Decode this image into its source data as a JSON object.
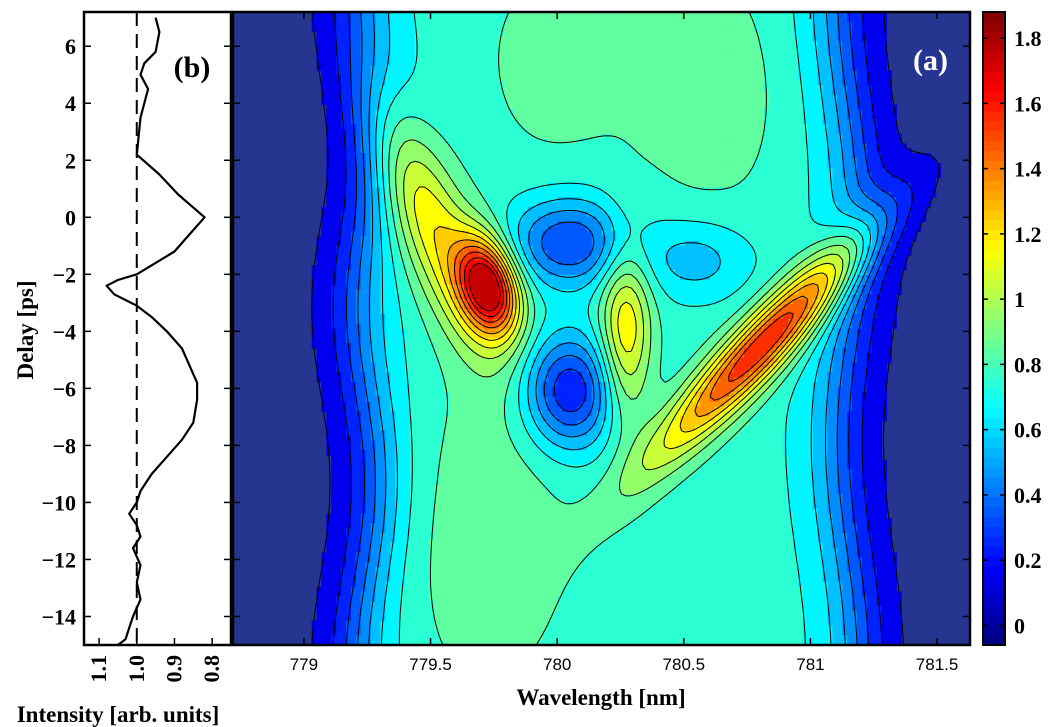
{
  "chart_data": [
    {
      "type": "heatmap",
      "panel_label": "(a)",
      "xlabel": "Wavelength [nm]",
      "ylabel": "Delay [ps]",
      "xlim": [
        778.72,
        781.63
      ],
      "ylim": [
        -15,
        7.2
      ],
      "x_ticks": [
        "779",
        "779.5",
        "780",
        "780.5",
        "781",
        "781.5"
      ],
      "x_tick_values": [
        779,
        779.5,
        780,
        780.5,
        781,
        781.5
      ],
      "y_ticks": [
        "6",
        "4",
        "2",
        "0",
        "−2",
        "−4",
        "−6",
        "−8",
        "−10",
        "−12",
        "−14"
      ],
      "y_tick_values": [
        6,
        4,
        2,
        0,
        -2,
        -4,
        -6,
        -8,
        -10,
        -12,
        -14
      ],
      "colorbar": {
        "ticks": [
          "0",
          "0.2",
          "0.4",
          "0.6",
          "0.8",
          "1",
          "1.2",
          "1.4",
          "1.6",
          "1.8"
        ],
        "tick_values": [
          0,
          0.2,
          0.4,
          0.6,
          0.8,
          1,
          1.2,
          1.4,
          1.6,
          1.8
        ],
        "range": [
          -0.06,
          1.88
        ]
      },
      "contour_levels": [
        0.1,
        0.2,
        0.3,
        0.4,
        0.5,
        0.6,
        0.7,
        0.8,
        0.9,
        1.0,
        1.1,
        1.2,
        1.3,
        1.4,
        1.5,
        1.6,
        1.7
      ],
      "peaks": [
        {
          "x": 779.72,
          "y": -2.4,
          "value": 1.75
        },
        {
          "x": 780.93,
          "y": -3.5,
          "value": 1.5
        },
        {
          "x": 779.43,
          "y": 0.6,
          "value": 1.12
        },
        {
          "x": 780.27,
          "y": -4.0,
          "value": 1.05
        },
        {
          "x": 780.72,
          "y": -5.5,
          "value": 1.3
        }
      ],
      "minima": [
        {
          "x": 780.05,
          "y": -0.8,
          "value": 0.3
        },
        {
          "x": 780.05,
          "y": -6.1,
          "value": 0.2
        }
      ]
    },
    {
      "type": "line",
      "panel_label": "(b)",
      "xlabel": "Intensity [arb. units]",
      "ylabel": "",
      "x_reversed": true,
      "xlim": [
        1.14,
        0.75
      ],
      "ylim": [
        -15,
        7.2
      ],
      "x_ticks": [
        "1.1",
        "1.0",
        "0.9",
        "0.8"
      ],
      "x_tick_values": [
        1.1,
        1.0,
        0.9,
        0.8
      ],
      "reference_line": {
        "x": 1.0,
        "style": "dashed"
      },
      "series": [
        {
          "x": [
            0.95,
            0.94,
            0.95,
            0.98,
            0.99,
            0.97,
            0.99,
            1.0,
            0.94,
            0.89,
            0.82,
            0.86,
            0.9,
            0.95,
            1.0,
            1.05,
            1.08,
            1.06,
            1.0,
            0.96,
            0.92,
            0.88,
            0.86,
            0.84,
            0.84,
            0.85,
            0.88,
            0.92,
            0.96,
            0.99,
            1.0,
            1.02,
            1.0,
            0.99,
            1.01,
            0.99,
            1.0,
            0.99,
            1.01,
            1.02,
            1.03,
            1.05,
            1.08
          ],
          "y": [
            7.0,
            6.5,
            5.8,
            5.4,
            5.0,
            4.5,
            3.5,
            2.2,
            1.5,
            0.8,
            0.0,
            -0.6,
            -1.2,
            -1.6,
            -2.0,
            -2.2,
            -2.4,
            -2.7,
            -3.1,
            -3.5,
            -4.0,
            -4.6,
            -5.2,
            -5.8,
            -6.4,
            -7.2,
            -7.8,
            -8.4,
            -9.0,
            -9.6,
            -10.0,
            -10.4,
            -10.8,
            -11.2,
            -11.6,
            -12.2,
            -12.8,
            -13.4,
            -14.0,
            -14.4,
            -14.8,
            -15.0,
            -15.2
          ]
        }
      ]
    }
  ]
}
